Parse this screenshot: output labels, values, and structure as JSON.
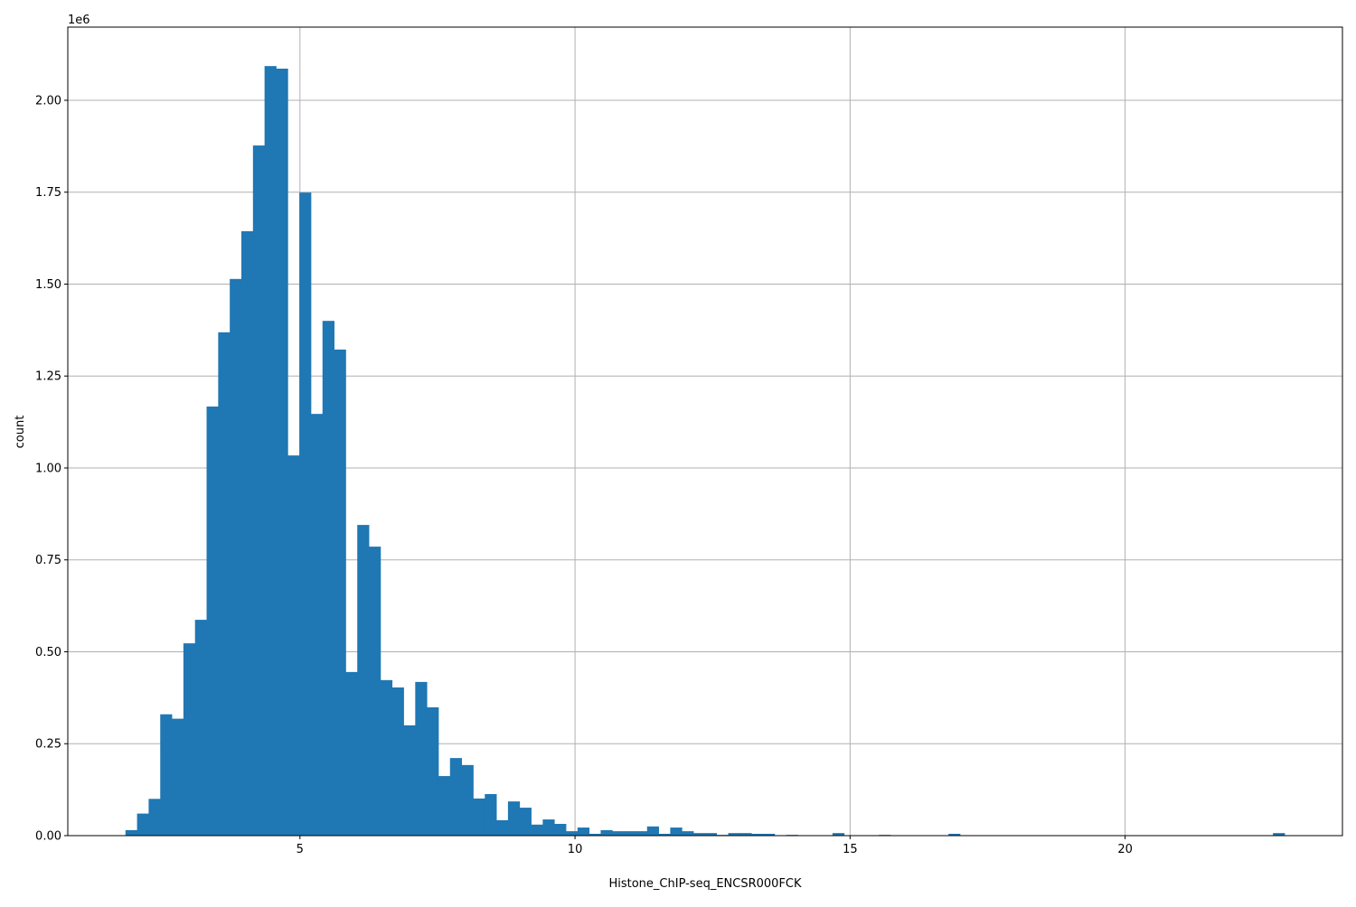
{
  "chart_data": {
    "type": "bar",
    "subtype": "histogram",
    "title": "",
    "xlabel": "Histone_ChIP-seq_ENCSR000FCK",
    "ylabel": "count",
    "y_offset_label": "1e6",
    "xlim": [
      0.78,
      23.95
    ],
    "ylim": [
      0,
      2199000
    ],
    "grid": true,
    "bar_color": "#1f77b4",
    "grid_color": "#b0b0b0",
    "bin_start": 1.828,
    "bin_width": 0.2107,
    "x_ticks": [
      5,
      10,
      15,
      20
    ],
    "x_tick_labels": [
      "5",
      "10",
      "15",
      "20"
    ],
    "y_ticks": [
      0,
      250000,
      500000,
      750000,
      1000000,
      1250000,
      1500000,
      1750000,
      2000000
    ],
    "y_tick_labels": [
      "0.00",
      "0.25",
      "0.50",
      "0.75",
      "1.00",
      "1.25",
      "1.50",
      "1.75",
      "2.00"
    ],
    "values": [
      15000,
      60000,
      100000,
      330000,
      318000,
      523000,
      587000,
      1167000,
      1369000,
      1514000,
      1644000,
      1877000,
      2093000,
      2086000,
      1034000,
      1749000,
      1147000,
      1400000,
      1322000,
      445000,
      845000,
      786000,
      423000,
      403000,
      300000,
      418000,
      349000,
      162000,
      211000,
      192000,
      101000,
      113000,
      42000,
      93000,
      76000,
      30000,
      44000,
      32000,
      12000,
      22000,
      5000,
      15000,
      12000,
      12000,
      12000,
      25000,
      5000,
      22000,
      12000,
      7000,
      7000,
      2000,
      7000,
      7000,
      5000,
      5000,
      0,
      2000,
      0,
      0,
      0,
      7000,
      0,
      0,
      0,
      2000,
      0,
      0,
      0,
      0,
      0,
      5000,
      0,
      0,
      0,
      0,
      0,
      0,
      0,
      0,
      0,
      0,
      0,
      0,
      0,
      0,
      0,
      0,
      0,
      0,
      0,
      0,
      0,
      0,
      0,
      0,
      0,
      0,
      0,
      7000
    ]
  }
}
